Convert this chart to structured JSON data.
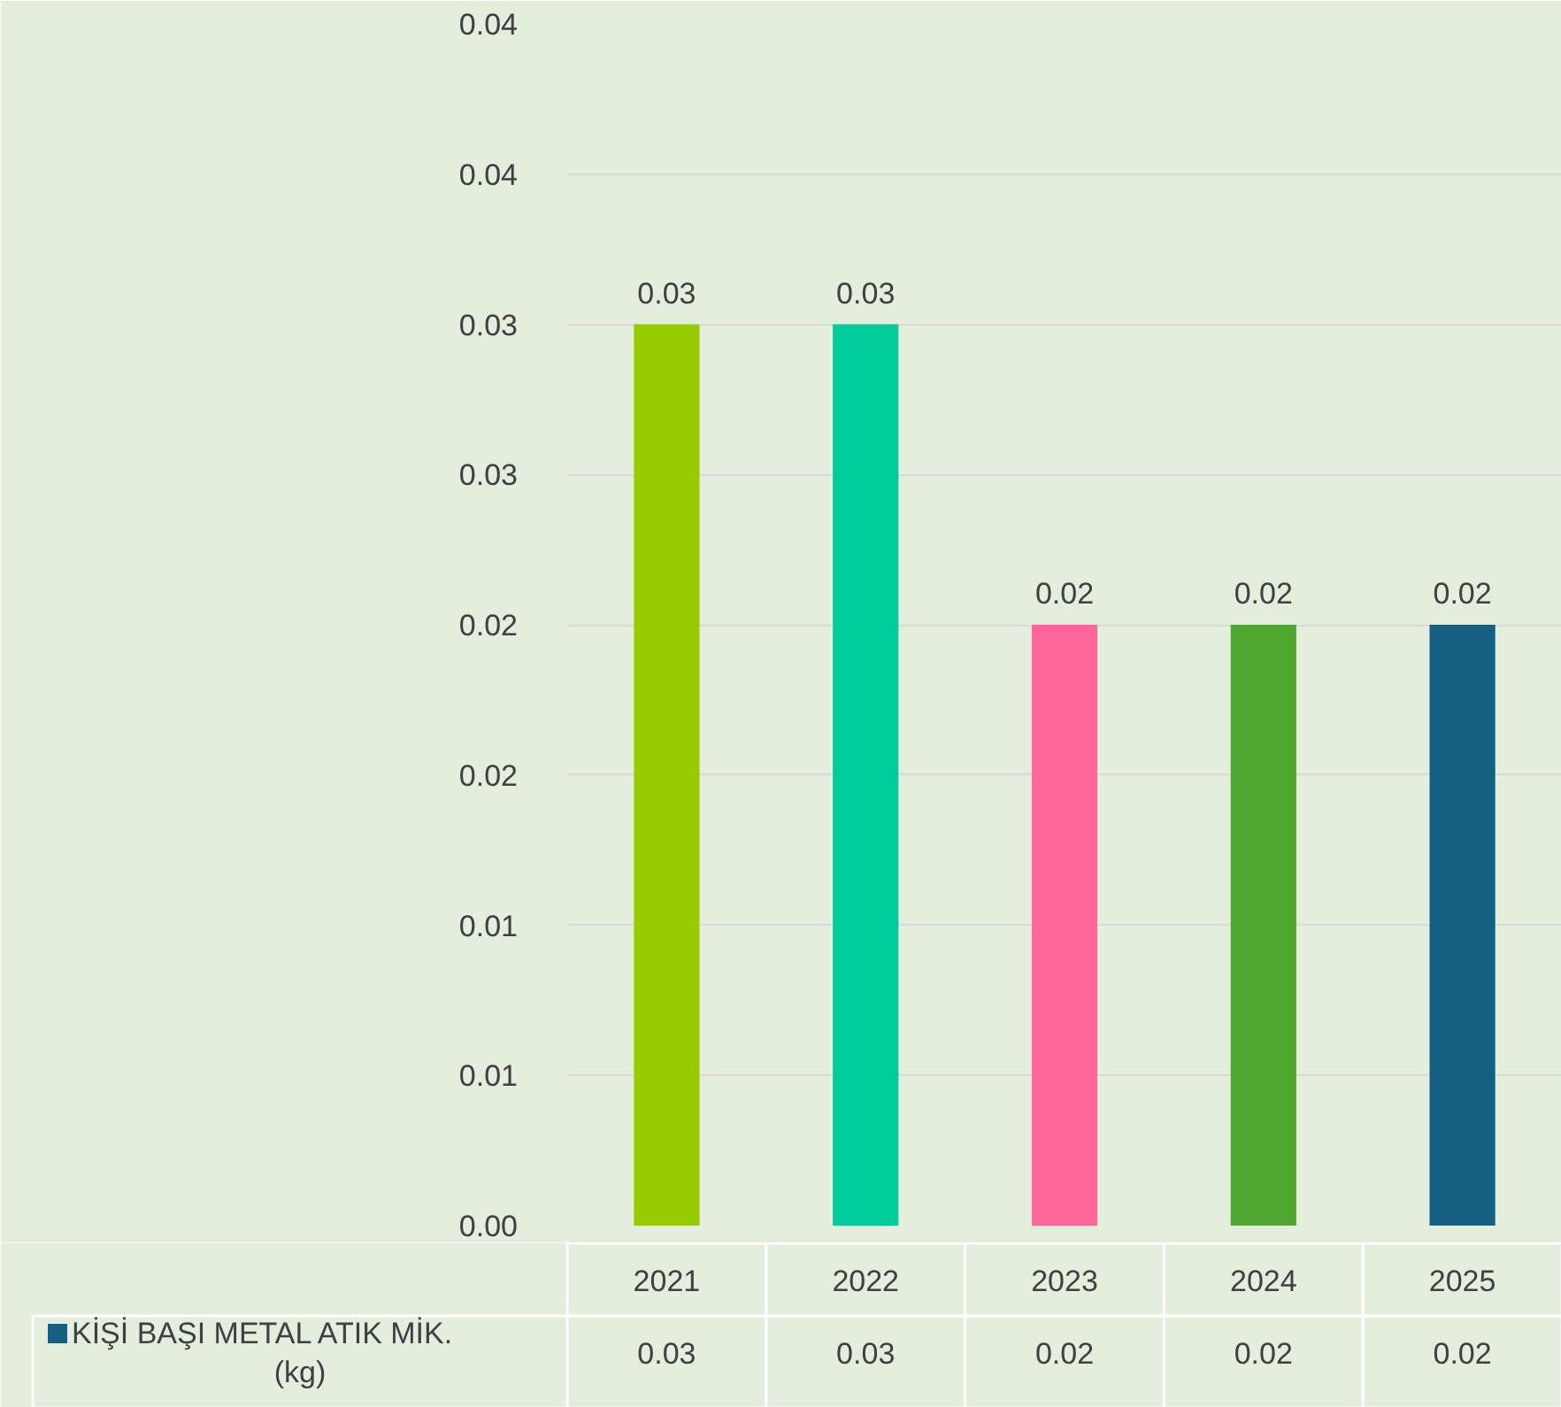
{
  "chart_data": {
    "type": "bar",
    "categories": [
      "2021",
      "2022",
      "2023",
      "2024",
      "2025"
    ],
    "series": [
      {
        "name": "KİŞİ BAŞI METAL ATIK MİK. (kg)",
        "color": "#156082",
        "colors": [
          "#99cc00",
          "#00cc99",
          "#ff6699",
          "#4ea72e",
          "#156082"
        ],
        "values": [
          0.03,
          0.03,
          0.02,
          0.02,
          0.02
        ]
      }
    ],
    "ylim": [
      0,
      0.04
    ],
    "yticks": [
      {
        "value": 0,
        "label": "0.00"
      },
      {
        "value": 0.005,
        "label": "0.01"
      },
      {
        "value": 0.01,
        "label": "0.01"
      },
      {
        "value": 0.015,
        "label": "0.02"
      },
      {
        "value": 0.02,
        "label": "0.02"
      },
      {
        "value": 0.025,
        "label": "0.03"
      },
      {
        "value": 0.03,
        "label": "0.03"
      },
      {
        "value": 0.035,
        "label": "0.04"
      },
      {
        "value": 0.04,
        "label": "0.04"
      }
    ],
    "grid": "y",
    "data_labels": true,
    "legend": "bottom"
  }
}
